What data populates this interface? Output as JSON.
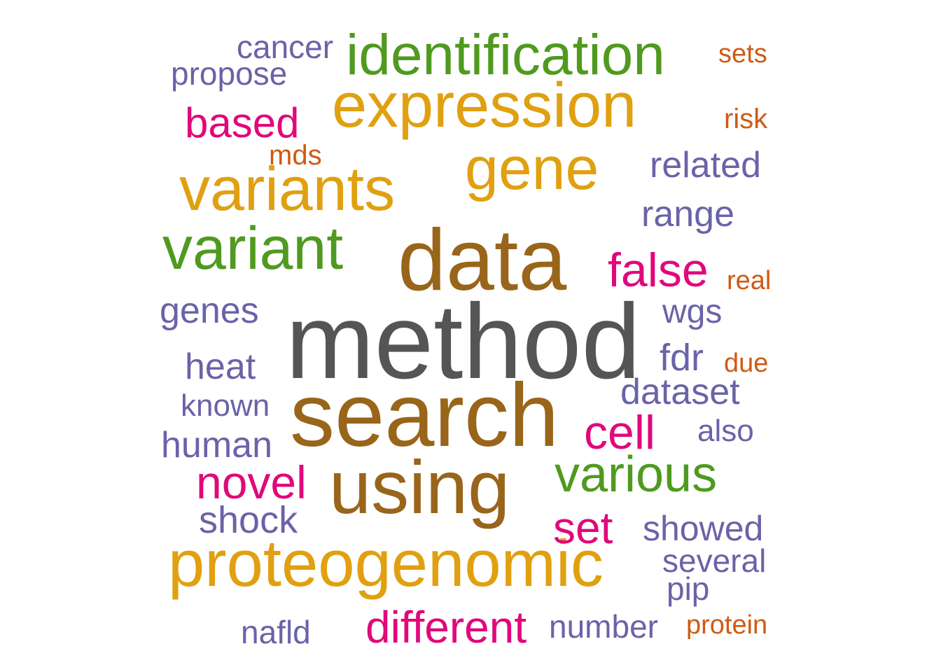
{
  "word_cloud": {
    "palette": {
      "gray": "#555555",
      "brown": "#98651A",
      "orange": "#E0A010",
      "green": "#4F9A1F",
      "magenta": "#E0087B",
      "purple": "#6A63A8",
      "rust": "#D05A14"
    },
    "words": [
      {
        "text": "method",
        "color": "gray"
      },
      {
        "text": "data",
        "color": "brown"
      },
      {
        "text": "search",
        "color": "brown"
      },
      {
        "text": "using",
        "color": "brown"
      },
      {
        "text": "expression",
        "color": "orange"
      },
      {
        "text": "variants",
        "color": "orange"
      },
      {
        "text": "gene",
        "color": "orange"
      },
      {
        "text": "proteogenomic",
        "color": "orange"
      },
      {
        "text": "identification",
        "color": "green"
      },
      {
        "text": "variant",
        "color": "green"
      },
      {
        "text": "various",
        "color": "green"
      },
      {
        "text": "false",
        "color": "magenta"
      },
      {
        "text": "based",
        "color": "magenta"
      },
      {
        "text": "novel",
        "color": "magenta"
      },
      {
        "text": "cell",
        "color": "magenta"
      },
      {
        "text": "set",
        "color": "magenta"
      },
      {
        "text": "different",
        "color": "magenta"
      },
      {
        "text": "cancer",
        "color": "purple"
      },
      {
        "text": "propose",
        "color": "purple"
      },
      {
        "text": "related",
        "color": "purple"
      },
      {
        "text": "range",
        "color": "purple"
      },
      {
        "text": "genes",
        "color": "purple"
      },
      {
        "text": "wgs",
        "color": "purple"
      },
      {
        "text": "heat",
        "color": "purple"
      },
      {
        "text": "fdr",
        "color": "purple"
      },
      {
        "text": "dataset",
        "color": "purple"
      },
      {
        "text": "known",
        "color": "purple"
      },
      {
        "text": "human",
        "color": "purple"
      },
      {
        "text": "also",
        "color": "purple"
      },
      {
        "text": "shock",
        "color": "purple"
      },
      {
        "text": "showed",
        "color": "purple"
      },
      {
        "text": "several",
        "color": "purple"
      },
      {
        "text": "pip",
        "color": "purple"
      },
      {
        "text": "nafld",
        "color": "purple"
      },
      {
        "text": "number",
        "color": "purple"
      },
      {
        "text": "sets",
        "color": "rust"
      },
      {
        "text": "risk",
        "color": "rust"
      },
      {
        "text": "mds",
        "color": "rust"
      },
      {
        "text": "real",
        "color": "rust"
      },
      {
        "text": "due",
        "color": "rust"
      },
      {
        "text": "protein",
        "color": "rust"
      }
    ]
  }
}
